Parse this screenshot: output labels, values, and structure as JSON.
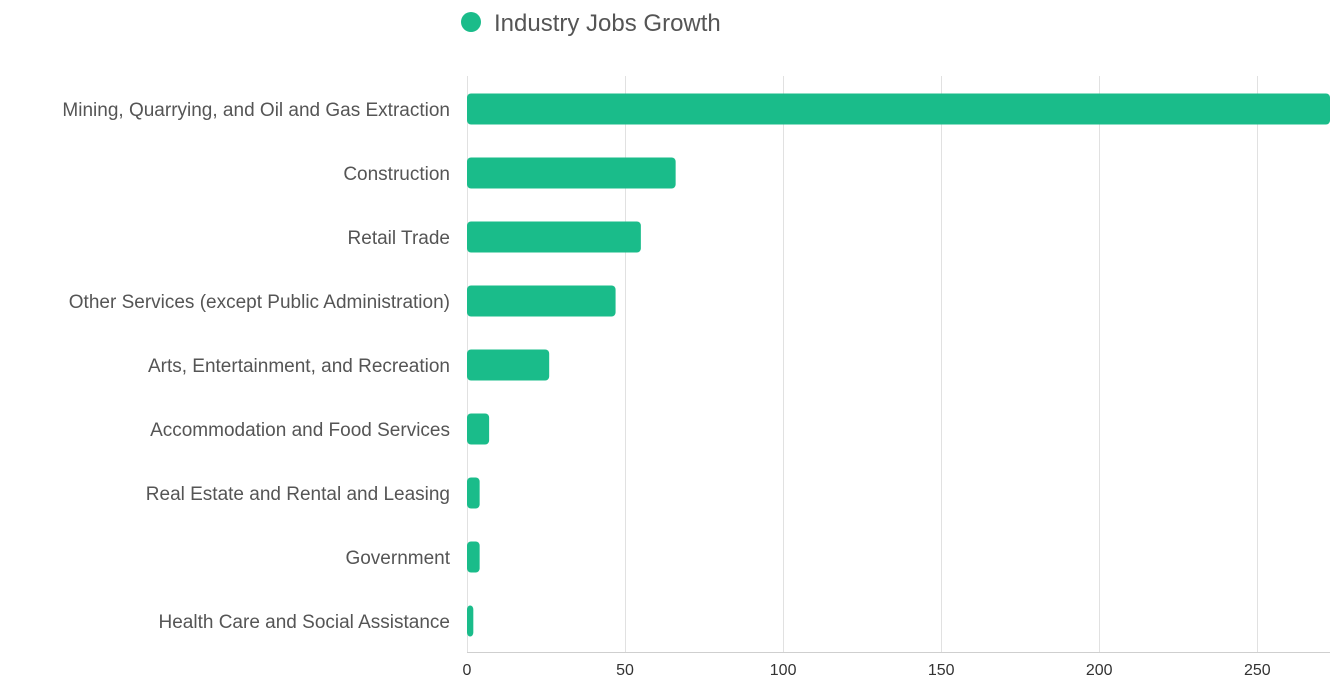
{
  "chart_data": {
    "type": "bar",
    "orientation": "horizontal",
    "categories": [
      "Mining, Quarrying, and Oil and Gas Extraction",
      "Construction",
      "Retail Trade",
      "Other Services (except Public Administration)",
      "Arts, Entertainment, and Recreation",
      "Accommodation and Food Services",
      "Real Estate and Rental and Leasing",
      "Government",
      "Health Care and Social Assistance"
    ],
    "series": [
      {
        "name": "Industry Jobs Growth",
        "color": "#1abc8a",
        "values": [
          273,
          66,
          55,
          47,
          26,
          7,
          4,
          4,
          2
        ]
      }
    ],
    "title": "",
    "xlabel": "",
    "ylabel": "",
    "xlim": [
      0,
      273
    ],
    "xticks": [
      0,
      50,
      100,
      150,
      200,
      250
    ],
    "grid": true,
    "legend": "top-center"
  }
}
